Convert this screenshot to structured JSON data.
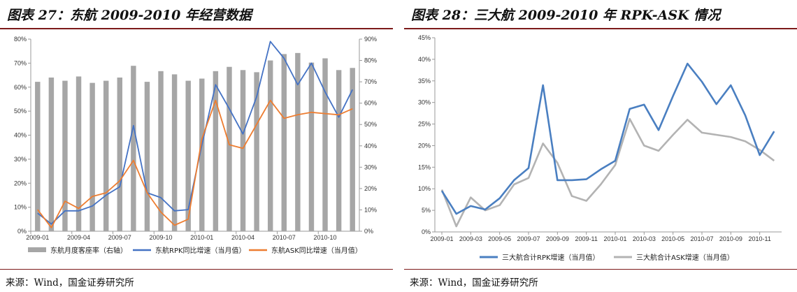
{
  "left_panel": {
    "title": "图表 27：东航 2009-2010 年经营数据",
    "source": "来源：Wind，国金证券研究所"
  },
  "right_panel": {
    "title": "图表 28：三大航 2009-2010 年 RPK-ASK 情况",
    "source": "来源：Wind，国金证券研究所"
  },
  "chart_data": [
    {
      "type": "bar",
      "x_tick_labels": [
        "2009-01",
        "2009-04",
        "2009-07",
        "2009-10",
        "2010-01",
        "2010-04",
        "2010-07",
        "2010-10"
      ],
      "x_tick_indices": [
        0,
        3,
        6,
        9,
        12,
        15,
        18,
        21
      ],
      "y_left": {
        "ticks": [
          "0%",
          "10%",
          "20%",
          "30%",
          "40%",
          "50%",
          "60%",
          "70%",
          "80%"
        ],
        "range": [
          0,
          80
        ]
      },
      "y_right": {
        "ticks": [
          "0%",
          "10%",
          "20%",
          "30%",
          "40%",
          "50%",
          "60%",
          "70%",
          "80%",
          "90%"
        ],
        "range": [
          0,
          90
        ]
      },
      "grid": false,
      "legend_position": "bottom",
      "series": [
        {
          "name": "东航月度客座率（右轴）",
          "kind": "bar",
          "axis": "right",
          "color": "#a6a6a6",
          "values": [
            70,
            72,
            70.5,
            72.5,
            69.5,
            70.5,
            72,
            77.5,
            70,
            75,
            73.5,
            70.5,
            71.5,
            75,
            77,
            75.5,
            74.5,
            80,
            83,
            83.5,
            79,
            81,
            75.5,
            76.5
          ]
        },
        {
          "name": "东航RPK同比增速（当月值）",
          "kind": "line",
          "axis": "left",
          "color": "#4472c4",
          "values": [
            7.5,
            3,
            8.5,
            8.5,
            10.5,
            15,
            18.5,
            44,
            16,
            14,
            8.5,
            9,
            36,
            61,
            51,
            40.5,
            56,
            79,
            72,
            61,
            70,
            58,
            47.5,
            59
          ]
        },
        {
          "name": "东航ASK同比增速（当月值）",
          "kind": "line",
          "axis": "left",
          "color": "#ed7d31",
          "values": [
            9,
            1.5,
            12.5,
            9.5,
            14.5,
            16,
            21,
            29.5,
            16,
            8,
            2.5,
            5,
            38.5,
            54.5,
            36,
            34.5,
            44.5,
            54.5,
            47,
            48.5,
            49.5,
            49,
            48.5,
            51
          ]
        }
      ]
    },
    {
      "type": "line",
      "x_tick_labels": [
        "2009-01",
        "2009-03",
        "2009-05",
        "2009-07",
        "2009-09",
        "2009-11",
        "2010-01",
        "2010-03",
        "2010-05",
        "2010-07",
        "2010-09",
        "2010-11"
      ],
      "x_tick_indices": [
        0,
        2,
        4,
        6,
        8,
        10,
        12,
        14,
        16,
        18,
        20,
        22
      ],
      "y": {
        "ticks": [
          "0%",
          "5%",
          "10%",
          "15%",
          "20%",
          "25%",
          "30%",
          "35%",
          "40%",
          "45%"
        ],
        "range": [
          0,
          45
        ]
      },
      "grid": false,
      "legend_position": "bottom",
      "series": [
        {
          "name": "三大航合计RPK增速（当月值）",
          "color": "#4a7fc1",
          "values": [
            9.5,
            4.2,
            6,
            5.2,
            7.8,
            12,
            14.8,
            34,
            12,
            12,
            12.2,
            14.5,
            16.5,
            28.5,
            29.5,
            23.6,
            31.5,
            39,
            34.8,
            29.6,
            34,
            27,
            17.8,
            23.3
          ]
        },
        {
          "name": "三大航合计ASK增速（当月值）",
          "color": "#b3b3b3",
          "values": [
            9.8,
            1.3,
            8,
            5,
            6.2,
            11,
            12.5,
            20.5,
            16,
            8.3,
            7.2,
            11,
            15.5,
            26.2,
            20,
            18.8,
            22.5,
            26,
            23,
            22.5,
            22,
            21,
            19,
            16.5
          ]
        }
      ]
    }
  ]
}
